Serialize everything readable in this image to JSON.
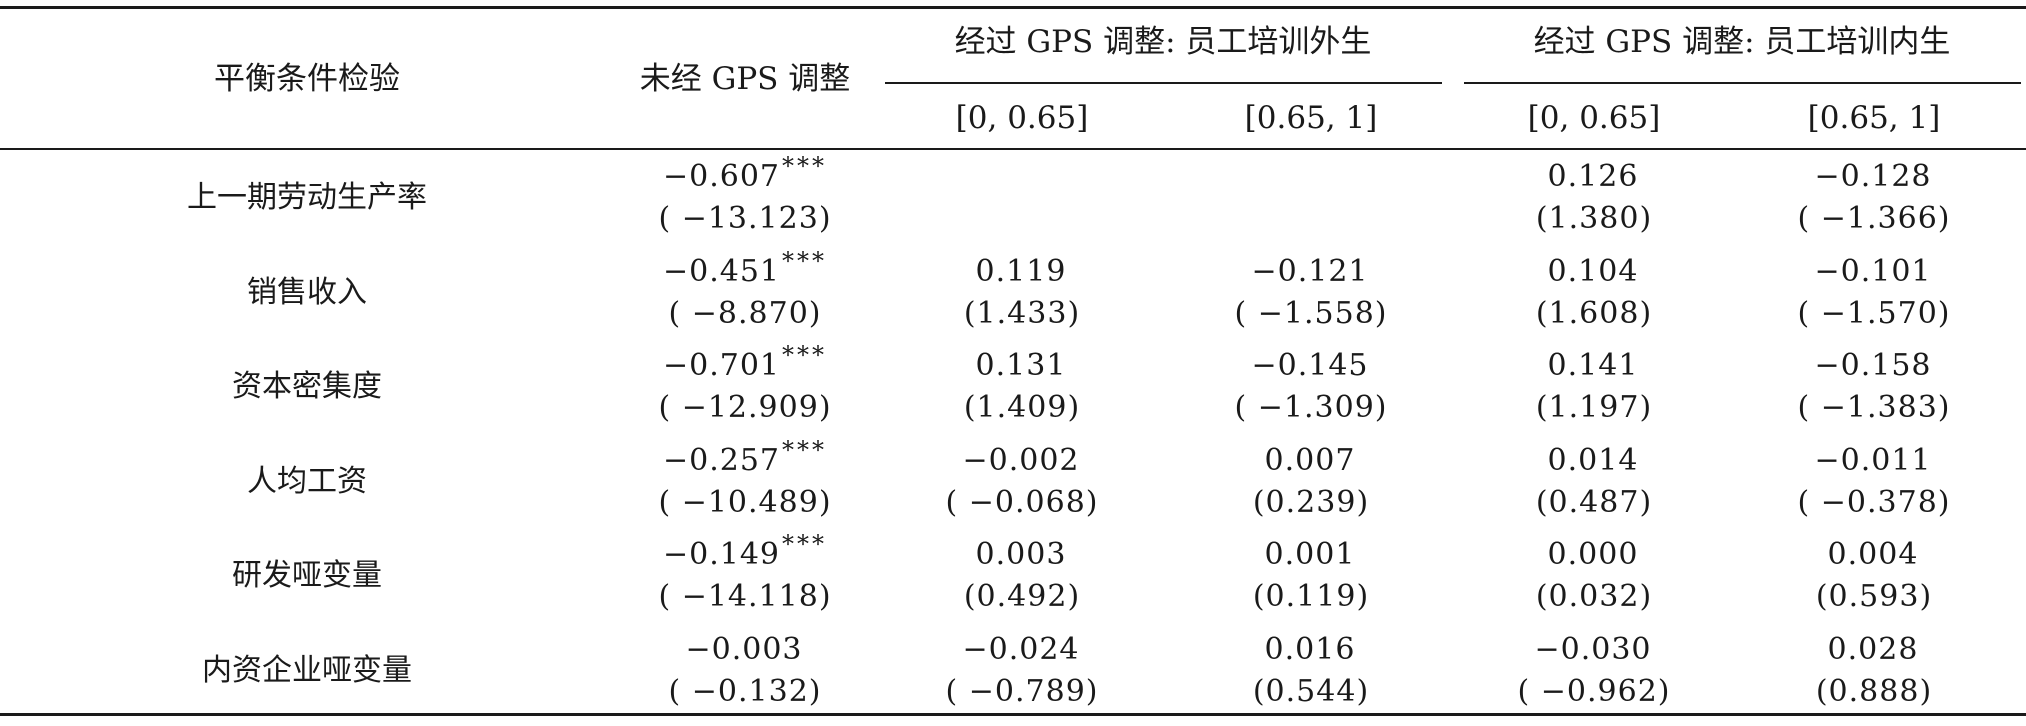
{
  "table": {
    "header": {
      "col_label": "平衡条件检验",
      "unadjusted": "未经 GPS 调整",
      "group_exog": "经过 GPS 调整: 员工培训外生",
      "group_endog": "经过 GPS 调整: 员工培训内生",
      "ranges": [
        "[0, 0.65]",
        "[0.65, 1]",
        "[0, 0.65]",
        "[0.65, 1]"
      ]
    },
    "rows": [
      {
        "label": "上一期劳动生产率",
        "cells": [
          {
            "coef": "−0.607",
            "sig": "***",
            "t": "( −13.123)"
          },
          {
            "coef": "",
            "sig": "",
            "t": ""
          },
          {
            "coef": "",
            "sig": "",
            "t": ""
          },
          {
            "coef": "0.126",
            "sig": "",
            "t": "(1.380)"
          },
          {
            "coef": "−0.128",
            "sig": "",
            "t": "( −1.366)"
          }
        ]
      },
      {
        "label": "销售收入",
        "cells": [
          {
            "coef": "−0.451",
            "sig": "***",
            "t": "( −8.870)"
          },
          {
            "coef": "0.119",
            "sig": "",
            "t": "(1.433)"
          },
          {
            "coef": "−0.121",
            "sig": "",
            "t": "( −1.558)"
          },
          {
            "coef": "0.104",
            "sig": "",
            "t": "(1.608)"
          },
          {
            "coef": "−0.101",
            "sig": "",
            "t": "( −1.570)"
          }
        ]
      },
      {
        "label": "资本密集度",
        "cells": [
          {
            "coef": "−0.701",
            "sig": "***",
            "t": "( −12.909)"
          },
          {
            "coef": "0.131",
            "sig": "",
            "t": "(1.409)"
          },
          {
            "coef": "−0.145",
            "sig": "",
            "t": "( −1.309)"
          },
          {
            "coef": "0.141",
            "sig": "",
            "t": "(1.197)"
          },
          {
            "coef": "−0.158",
            "sig": "",
            "t": "( −1.383)"
          }
        ]
      },
      {
        "label": "人均工资",
        "cells": [
          {
            "coef": "−0.257",
            "sig": "***",
            "t": "( −10.489)"
          },
          {
            "coef": "−0.002",
            "sig": "",
            "t": "( −0.068)"
          },
          {
            "coef": "0.007",
            "sig": "",
            "t": "(0.239)"
          },
          {
            "coef": "0.014",
            "sig": "",
            "t": "(0.487)"
          },
          {
            "coef": "−0.011",
            "sig": "",
            "t": "( −0.378)"
          }
        ]
      },
      {
        "label": "研发哑变量",
        "cells": [
          {
            "coef": "−0.149",
            "sig": "***",
            "t": "( −14.118)"
          },
          {
            "coef": "0.003",
            "sig": "",
            "t": "(0.492)"
          },
          {
            "coef": "0.001",
            "sig": "",
            "t": "(0.119)"
          },
          {
            "coef": "0.000",
            "sig": "",
            "t": "(0.032)"
          },
          {
            "coef": "0.004",
            "sig": "",
            "t": "(0.593)"
          }
        ]
      },
      {
        "label": "内资企业哑变量",
        "cells": [
          {
            "coef": "−0.003",
            "sig": "",
            "t": "( −0.132)"
          },
          {
            "coef": "−0.024",
            "sig": "",
            "t": "( −0.789)"
          },
          {
            "coef": "0.016",
            "sig": "",
            "t": "(0.544)"
          },
          {
            "coef": "−0.030",
            "sig": "",
            "t": "( −0.962)"
          },
          {
            "coef": "0.028",
            "sig": "",
            "t": "(0.888)"
          }
        ]
      }
    ]
  }
}
